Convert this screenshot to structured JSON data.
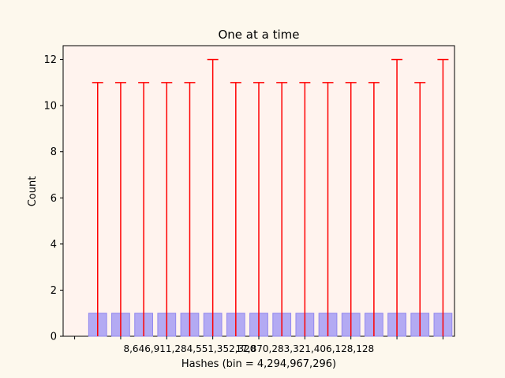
{
  "chart_data": {
    "type": "bar",
    "title": "One at a time",
    "xlabel": "Hashes (bin = 4,294,967,296)",
    "ylabel": "Count",
    "ylim": [
      0,
      12.6
    ],
    "y_ticks": [
      0,
      2,
      4,
      6,
      8,
      10,
      12
    ],
    "y_tick_labels": [
      "0",
      "2",
      "4",
      "6",
      "8",
      "10",
      "12"
    ],
    "x_tick_labels": [
      "8,646,911,284,551,352,320",
      "17,870,283,321,406,128,128"
    ],
    "x_tick_label_bins": [
      4.5,
      9.5
    ],
    "bin_count": 16,
    "values": [
      1,
      1,
      1,
      1,
      1,
      1,
      1,
      1,
      1,
      1,
      1,
      1,
      1,
      1,
      1,
      1
    ],
    "error_upper": [
      11,
      11,
      11,
      11,
      11,
      12,
      11,
      11,
      11,
      11,
      11,
      11,
      11,
      12,
      11,
      12
    ],
    "grid": false,
    "colors": {
      "bar_fill": "#b3aaf3",
      "bar_edge": "#9288ee",
      "error_bar": "#ff0000",
      "plot_bg": "#fff3ee",
      "page_bg": "#fdf8ed"
    }
  }
}
